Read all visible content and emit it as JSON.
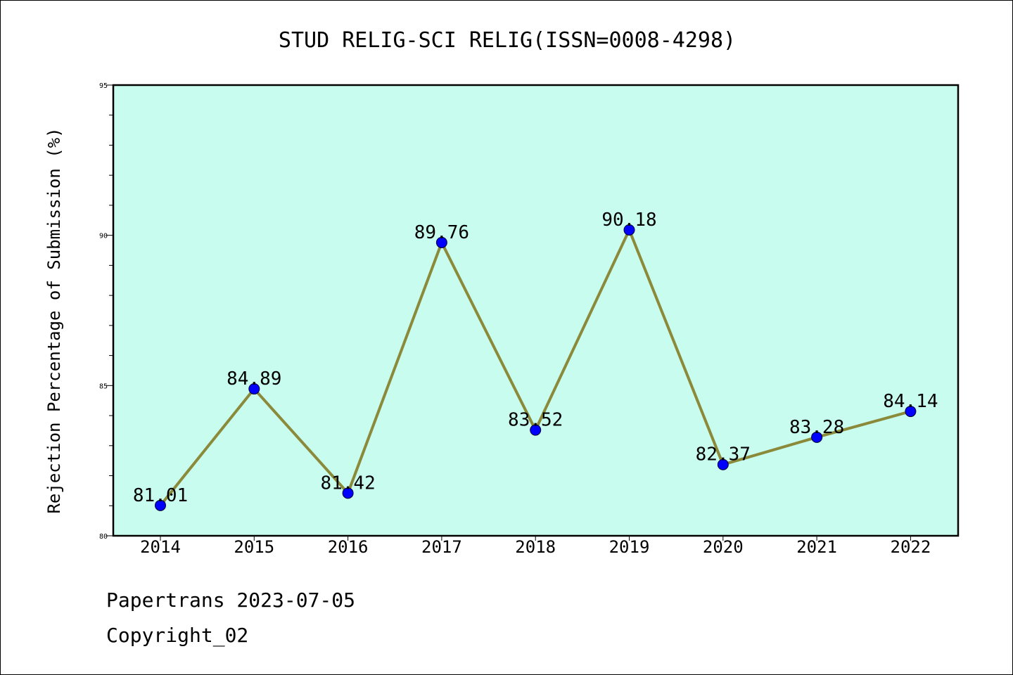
{
  "chart_data": {
    "type": "line",
    "title": "STUD RELIG-SCI RELIG(ISSN=0008-4298)",
    "xlabel": "",
    "ylabel": "Rejection Percentage of Submission (%)",
    "categories": [
      "2014",
      "2015",
      "2016",
      "2017",
      "2018",
      "2019",
      "2020",
      "2021",
      "2022"
    ],
    "values": [
      81.01,
      84.89,
      81.42,
      89.76,
      83.52,
      90.18,
      82.37,
      83.28,
      84.14
    ],
    "data_labels": [
      "81.01",
      "84.89",
      "81.42",
      "89.76",
      "83.52",
      "90.18",
      "82.37",
      "83.28",
      "84.14"
    ],
    "ylim": [
      80,
      95
    ],
    "yticks": [
      "80",
      "85",
      "90",
      "95"
    ],
    "grid": false,
    "legend": "none",
    "colors": {
      "plot_background": "#c8fcef",
      "line": "#8b8a3a",
      "marker": "#0000ff"
    }
  },
  "footer": {
    "line1": "Papertrans 2023-07-05",
    "line2": "Copyright_02"
  }
}
